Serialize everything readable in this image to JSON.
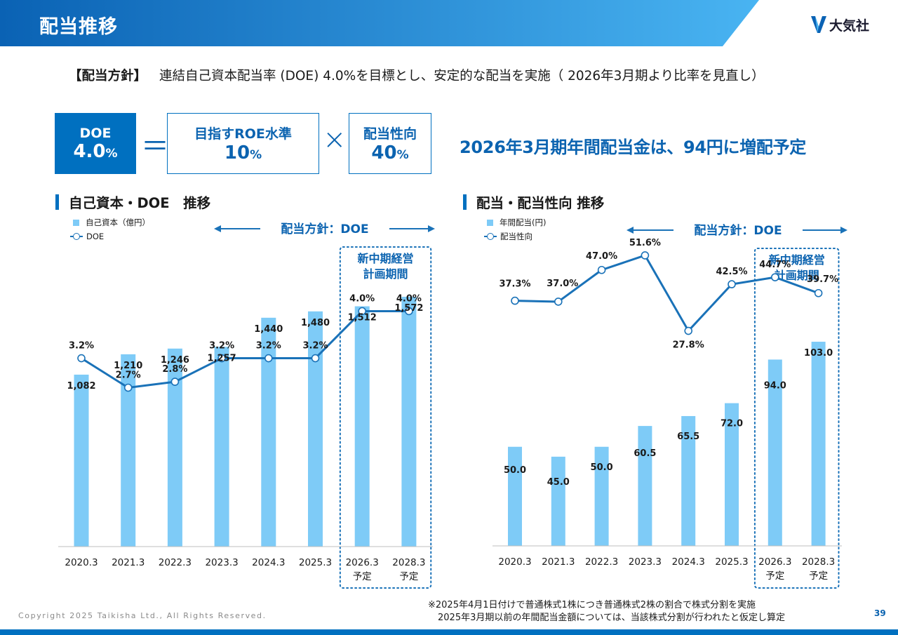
{
  "header": {
    "title": "配当推移",
    "logo_text": "大気社",
    "colors": {
      "band_start": "#0a62b4",
      "band_end": "#49b4f2",
      "accent": "#0070c0"
    }
  },
  "policy": {
    "label": "【配当方針】",
    "text": "連結自己資本配当率 (DOE) 4.0%を目標とし、安定的な配当を実施（ 2026年3月期より比率を見直し）"
  },
  "formula": {
    "doe_label": "DOE",
    "doe_value": "4.0",
    "equals": "＝",
    "roe_label": "目指すROE水準",
    "roe_value": "10",
    "times": "×",
    "payout_label": "配当性向",
    "payout_value": "40",
    "percent": "%"
  },
  "headline": "2026年3月期年間配当金は、94円に増配予定",
  "left_section": {
    "title": "自己資本・DOE　推移",
    "legend_bar": "自己資本（億円）",
    "legend_line": "DOE"
  },
  "right_section": {
    "title": "配当・配当性向 推移",
    "legend_bar": "年間配当(円)",
    "legend_line": "配当性向"
  },
  "chart_data": [
    {
      "type": "bar",
      "categories": [
        "2020.3",
        "2021.3",
        "2022.3",
        "2023.3",
        "2024.3",
        "2025.3",
        "2026.3",
        "2028.3"
      ],
      "category_sublabels": [
        "",
        "",
        "",
        "",
        "",
        "",
        "予定",
        "予定"
      ],
      "series": [
        {
          "name": "自己資本（億円）",
          "type": "bar",
          "values": [
            1082,
            1210,
            1246,
            1257,
            1440,
            1480,
            1512,
            1572
          ],
          "labels": [
            "1,082",
            "1,210",
            "1,246",
            "1,257",
            "1,440",
            "1,480",
            "1,512",
            "1,572"
          ],
          "color": "#7ecbf7"
        },
        {
          "name": "DOE",
          "type": "line",
          "values": [
            3.2,
            2.7,
            2.8,
            3.2,
            3.2,
            3.2,
            4.0,
            4.0
          ],
          "labels": [
            "3.2%",
            "2.7%",
            "2.8%",
            "3.2%",
            "3.2%",
            "3.2%",
            "4.0%",
            "4.0%"
          ],
          "color": "#1a72b8"
        }
      ],
      "bar_ylim": [
        0,
        2000
      ],
      "line_ylim": [
        0,
        5.4
      ],
      "policy_arrow_label": "配当方針：DOE",
      "highlight_label": [
        "新中期経営",
        "計画期間"
      ],
      "highlight_from_index": 6
    },
    {
      "type": "bar",
      "categories": [
        "2020.3",
        "2021.3",
        "2022.3",
        "2023.3",
        "2024.3",
        "2025.3",
        "2026.3",
        "2028.3"
      ],
      "category_sublabels": [
        "",
        "",
        "",
        "",
        "",
        "",
        "予定",
        "予定"
      ],
      "series": [
        {
          "name": "年間配当(円)",
          "type": "bar",
          "values": [
            50.0,
            45.0,
            50.0,
            60.5,
            65.5,
            72.0,
            94.0,
            103.0
          ],
          "labels": [
            "50.0",
            "45.0",
            "50.0",
            "60.5",
            "65.5",
            "72.0",
            "94.0",
            "103.0"
          ],
          "color": "#7ecbf7"
        },
        {
          "name": "配当性向",
          "type": "line",
          "values": [
            37.3,
            37.0,
            47.0,
            51.6,
            27.8,
            42.5,
            44.7,
            39.7
          ],
          "labels": [
            "37.3%",
            "37.0%",
            "47.0%",
            "51.6%",
            "27.8%",
            "42.5%",
            "44.7%",
            "39.7%"
          ],
          "color": "#1a72b8"
        }
      ],
      "bar_ylim": [
        0,
        160
      ],
      "line_ylim": [
        -40,
        60
      ],
      "policy_arrow_label": "配当方針：DOE",
      "highlight_label": [
        "新中期経営",
        "計画期間"
      ],
      "highlight_from_index": 6
    }
  ],
  "footer": {
    "copyright": "Copyright 2025 Taikisha Ltd., All Rights Reserved.",
    "note1": "※2025年4月1日付けで普通株式1株につき普通株式2株の割合で株式分割を実施",
    "note2": "2025年3月期以前の年間配当金額については、当該株式分割が行われたと仮定し算定",
    "page_number": "39"
  }
}
